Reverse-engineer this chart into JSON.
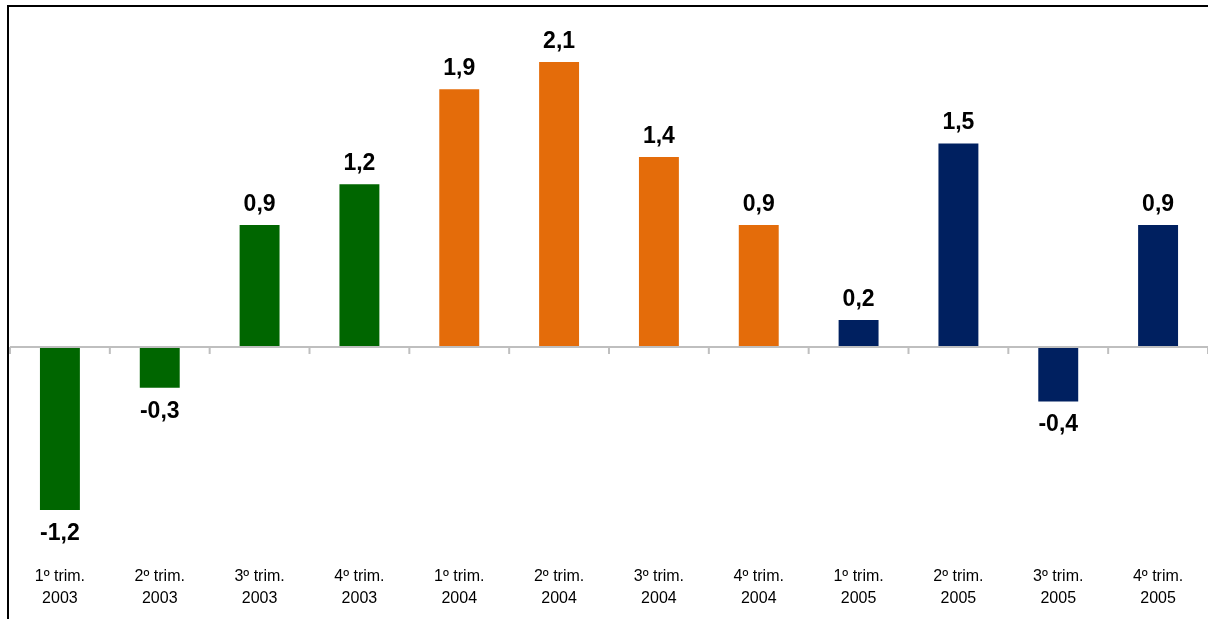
{
  "chart_data": {
    "type": "bar",
    "categories": [
      "1º trim. 2003",
      "2º trim. 2003",
      "3º trim. 2003",
      "4º trim. 2003",
      "1º trim. 2004",
      "2º trim. 2004",
      "3º trim. 2004",
      "4º trim. 2004",
      "1º trim. 2005",
      "2º trim. 2005",
      "3º trim. 2005",
      "4º trim. 2005"
    ],
    "values": [
      -1.2,
      -0.3,
      0.9,
      1.2,
      1.9,
      2.1,
      1.4,
      0.9,
      0.2,
      1.5,
      -0.4,
      0.9
    ],
    "colors": [
      "#006600",
      "#006600",
      "#006600",
      "#006600",
      "#e46c0a",
      "#e46c0a",
      "#e46c0a",
      "#e46c0a",
      "#002060",
      "#002060",
      "#002060",
      "#002060"
    ],
    "value_labels": [
      "-1,2",
      "-0,3",
      "0,9",
      "1,2",
      "1,9",
      "2,1",
      "1,4",
      "0,9",
      "0,2",
      "1,5",
      "-0,4",
      "0,9"
    ]
  }
}
